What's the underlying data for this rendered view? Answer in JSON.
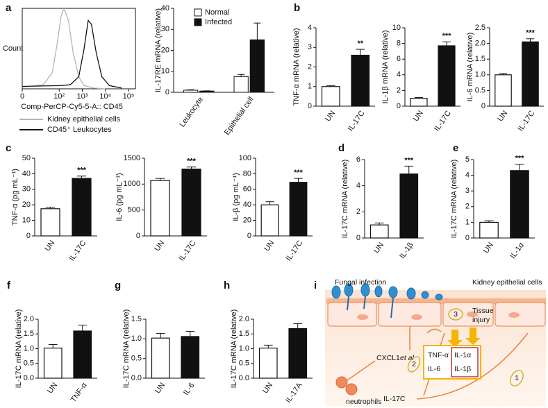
{
  "chart_data": [
    {
      "type": "line",
      "panel": "a",
      "ylabel": "Count",
      "xlabel": "Comp-PerCP-Cy5-5-A:: CD45",
      "xlim": [
        0,
        200000
      ],
      "ylim": [
        0,
        100
      ],
      "xticks": [
        {
          "value": 0,
          "label": "0"
        },
        {
          "value": 100,
          "label": "10²"
        },
        {
          "value": 1000,
          "label": "10³"
        },
        {
          "value": 10000,
          "label": "10⁴"
        },
        {
          "value": 100000,
          "label": "10⁵"
        }
      ],
      "series": [
        {
          "name": "Kidney epithelial cells",
          "color": "#b5b5b5",
          "x": [
            0,
            20,
            50,
            80,
            120,
            160,
            250,
            400,
            700,
            1200,
            3000,
            10000
          ],
          "values": [
            2,
            5,
            20,
            55,
            90,
            100,
            85,
            45,
            15,
            4,
            1,
            0
          ]
        },
        {
          "name": "CD45⁺ Leukocytes",
          "color": "#111111",
          "x": [
            0,
            100,
            300,
            700,
            1200,
            1800,
            2500,
            4000,
            7000,
            15000,
            50000
          ],
          "values": [
            3,
            4,
            5,
            15,
            50,
            85,
            80,
            45,
            15,
            4,
            1
          ]
        }
      ]
    },
    {
      "type": "grouped_bar",
      "ylabel": "IL-17RE mRNA (relative)",
      "categories": [
        "Leukocyte",
        "Epithelial cell"
      ],
      "ylim": [
        0,
        40
      ],
      "yticks": [
        0,
        10,
        20,
        30,
        40
      ],
      "series": [
        {
          "name": "Normal",
          "color": "#ffffff",
          "values": [
            1,
            7.5
          ],
          "errors": [
            0.2,
            1
          ]
        },
        {
          "name": "Infected",
          "color": "#111111",
          "values": [
            0.6,
            25
          ],
          "errors": [
            0.1,
            8
          ]
        }
      ]
    },
    {
      "type": "bar",
      "panel": "b",
      "ylabel": "TNF-α mRNA (relative)",
      "categories": [
        "UN",
        "IL-17C"
      ],
      "colors": [
        "#ffffff",
        "#111111"
      ],
      "values": [
        1.0,
        2.6
      ],
      "errors": [
        0.05,
        0.3
      ],
      "significance": [
        null,
        "**"
      ],
      "ylim": [
        0,
        4
      ],
      "yticks": [
        0,
        1,
        2,
        3,
        4
      ]
    },
    {
      "type": "bar",
      "ylabel": "IL-1β mRNA (relative)",
      "categories": [
        "UN",
        "IL-17C"
      ],
      "colors": [
        "#ffffff",
        "#111111"
      ],
      "values": [
        1.0,
        7.7
      ],
      "errors": [
        0.1,
        0.5
      ],
      "significance": [
        null,
        "***"
      ],
      "ylim": [
        0,
        10
      ],
      "yticks": [
        0,
        2,
        4,
        6,
        8,
        10
      ]
    },
    {
      "type": "bar",
      "ylabel": "IL-6 mRNA (relative)",
      "categories": [
        "UN",
        "IL-17C"
      ],
      "colors": [
        "#ffffff",
        "#111111"
      ],
      "values": [
        1.0,
        2.05
      ],
      "errors": [
        0.04,
        0.1
      ],
      "significance": [
        null,
        "***"
      ],
      "ylim": [
        0,
        2.5
      ],
      "yticks": [
        0,
        0.5,
        {
          "value": 1,
          "label": "1.0"
        },
        1.5,
        {
          "value": 2,
          "label": "2.0"
        },
        2.5
      ]
    },
    {
      "type": "bar",
      "panel": "c",
      "ylabel": "TNF-α (pg mL⁻¹)",
      "categories": [
        "UN",
        "IL-17C"
      ],
      "colors": [
        "#ffffff",
        "#111111"
      ],
      "values": [
        17.5,
        37
      ],
      "errors": [
        1,
        1.5
      ],
      "significance": [
        null,
        "***"
      ],
      "ylim": [
        0,
        50
      ],
      "yticks": [
        0,
        10,
        20,
        30,
        40,
        50
      ]
    },
    {
      "type": "bar",
      "ylabel": "IL-6 (pg mL⁻¹)",
      "categories": [
        "UN",
        "IL-17C"
      ],
      "colors": [
        "#ffffff",
        "#111111"
      ],
      "values": [
        1070,
        1290
      ],
      "errors": [
        40,
        40
      ],
      "significance": [
        null,
        "***"
      ],
      "ylim": [
        0,
        1500
      ],
      "yticks": [
        0,
        500,
        1000,
        1500
      ]
    },
    {
      "type": "bar",
      "ylabel": "IL-β (pg mL⁻¹)",
      "categories": [
        "UN",
        "IL-17C"
      ],
      "colors": [
        "#ffffff",
        "#111111"
      ],
      "values": [
        40,
        69
      ],
      "errors": [
        4,
        5
      ],
      "significance": [
        null,
        "***"
      ],
      "ylim": [
        0,
        100
      ],
      "yticks": [
        0,
        20,
        40,
        60,
        80,
        100
      ]
    },
    {
      "type": "bar",
      "panel": "d",
      "ylabel": "IL-17C mRNA (relative)",
      "categories": [
        "UN",
        "IL-1β"
      ],
      "colors": [
        "#ffffff",
        "#111111"
      ],
      "values": [
        1.0,
        4.9
      ],
      "errors": [
        0.15,
        0.6
      ],
      "significance": [
        null,
        "***"
      ],
      "ylim": [
        0,
        6
      ],
      "yticks": [
        0,
        2,
        4,
        6
      ]
    },
    {
      "type": "bar",
      "panel": "e",
      "ylabel": "IL-17C mRNA (relative)",
      "categories": [
        "UN",
        "IL-1α"
      ],
      "colors": [
        "#ffffff",
        "#111111"
      ],
      "values": [
        1.0,
        4.3
      ],
      "errors": [
        0.1,
        0.4
      ],
      "significance": [
        null,
        "***"
      ],
      "ylim": [
        0,
        5
      ],
      "yticks": [
        0,
        1,
        2,
        3,
        4,
        5
      ]
    },
    {
      "type": "bar",
      "panel": "f",
      "ylabel": "IL-17C mRNA (relative)",
      "categories": [
        "UN",
        "TNF-α"
      ],
      "colors": [
        "#ffffff",
        "#111111"
      ],
      "values": [
        1.02,
        1.6
      ],
      "errors": [
        0.12,
        0.2
      ],
      "ylim": [
        0,
        2
      ],
      "yticks": [
        {
          "value": 0,
          "label": "0.0"
        },
        0.5,
        {
          "value": 1,
          "label": "1.0"
        },
        1.5,
        {
          "value": 2,
          "label": "2.0"
        }
      ]
    },
    {
      "type": "bar",
      "panel": "g",
      "ylabel": "IL-17C mRNA (relative)",
      "categories": [
        "UN",
        "IL-6"
      ],
      "colors": [
        "#ffffff",
        "#111111"
      ],
      "values": [
        1.02,
        1.06
      ],
      "errors": [
        0.12,
        0.13
      ],
      "ylim": [
        0,
        1.5
      ],
      "yticks": [
        {
          "value": 0,
          "label": "0.0"
        },
        0.5,
        {
          "value": 1,
          "label": "1.0"
        },
        1.5
      ]
    },
    {
      "type": "bar",
      "panel": "h",
      "ylabel": "IL-17C mRNA (relative)",
      "categories": [
        "UN",
        "IL-17A"
      ],
      "colors": [
        "#ffffff",
        "#111111"
      ],
      "values": [
        1.02,
        1.68
      ],
      "errors": [
        0.1,
        0.17
      ],
      "ylim": [
        0,
        2
      ],
      "yticks": [
        {
          "value": 0,
          "label": "0.0"
        },
        0.5,
        {
          "value": 1,
          "label": "1.0"
        },
        1.5,
        {
          "value": 2,
          "label": "2.0"
        }
      ]
    }
  ],
  "diagram": {
    "panel": "i",
    "fungal_infection": "Fungal infection",
    "kidney_cells": "Kidney epithelial cells",
    "cxcl1": "CXCL1",
    "et_al": "et al",
    "tissue_injury": [
      "Tissue",
      "injury"
    ],
    "cytokines_left": [
      "TNF-α",
      "IL-6"
    ],
    "cytokines_right": [
      "IL-1α",
      "IL-1β"
    ],
    "il17c": "IL-17C",
    "neutrophils": "neutrophils",
    "steps": [
      "1",
      "2",
      "3"
    ]
  }
}
